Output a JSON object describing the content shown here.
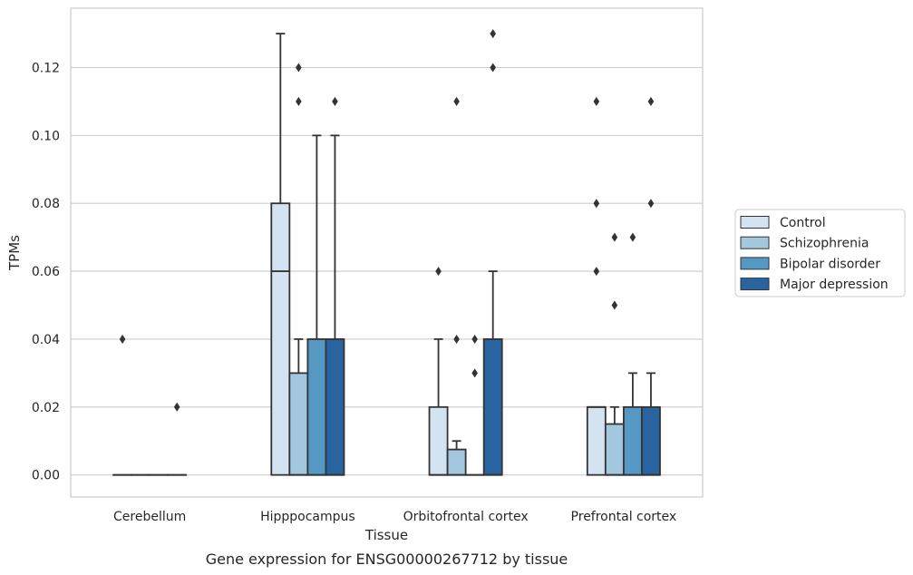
{
  "caption": "Gene expression for ENSG00000267712 by tissue",
  "colors": {
    "grid": "#cccccc",
    "frame": "#cccccc",
    "box_edge": "#333333",
    "text": "#262626"
  },
  "chart_data": {
    "type": "box",
    "title": "",
    "xlabel": "Tissue",
    "ylabel": "TPMs",
    "ylim": [
      -0.0065,
      0.1375
    ],
    "yticks": [
      0.0,
      0.02,
      0.04,
      0.06,
      0.08,
      0.1,
      0.12
    ],
    "ytick_labels": [
      "0.00",
      "0.02",
      "0.04",
      "0.06",
      "0.08",
      "0.10",
      "0.12"
    ],
    "grid": "horizontal",
    "legend_position": "right",
    "categories": [
      "Cerebellum",
      "Hipppocampus",
      "Orbitofrontal cortex",
      "Prefrontal cortex"
    ],
    "series": [
      {
        "name": "Control",
        "color": "#d4e3f2",
        "boxes": [
          {
            "q1": 0.0,
            "median": 0.0,
            "q3": 0.0,
            "whisker_low": 0.0,
            "whisker_high": 0.0,
            "outliers": [
              0.04
            ]
          },
          {
            "q1": 0.0,
            "median": 0.06,
            "q3": 0.08,
            "whisker_low": 0.0,
            "whisker_high": 0.13,
            "outliers": []
          },
          {
            "q1": 0.0,
            "median": 0.0,
            "q3": 0.02,
            "whisker_low": 0.0,
            "whisker_high": 0.04,
            "outliers": [
              0.06
            ]
          },
          {
            "q1": 0.0,
            "median": 0.02,
            "q3": 0.02,
            "whisker_low": 0.0,
            "whisker_high": 0.02,
            "outliers": [
              0.06,
              0.08,
              0.11
            ]
          }
        ]
      },
      {
        "name": "Schizophrenia",
        "color": "#a3c7df",
        "boxes": [
          {
            "q1": 0.0,
            "median": 0.0,
            "q3": 0.0,
            "whisker_low": 0.0,
            "whisker_high": 0.0,
            "outliers": []
          },
          {
            "q1": 0.0,
            "median": 0.0,
            "q3": 0.03,
            "whisker_low": 0.0,
            "whisker_high": 0.04,
            "outliers": [
              0.11,
              0.12
            ]
          },
          {
            "q1": 0.0,
            "median": 0.0,
            "q3": 0.0075,
            "whisker_low": 0.0,
            "whisker_high": 0.01,
            "outliers": [
              0.04,
              0.11
            ]
          },
          {
            "q1": 0.0,
            "median": 0.0,
            "q3": 0.015,
            "whisker_low": 0.0,
            "whisker_high": 0.02,
            "outliers": [
              0.05,
              0.07
            ]
          }
        ]
      },
      {
        "name": "Bipolar disorder",
        "color": "#5698c4",
        "boxes": [
          {
            "q1": 0.0,
            "median": 0.0,
            "q3": 0.0,
            "whisker_low": 0.0,
            "whisker_high": 0.0,
            "outliers": []
          },
          {
            "q1": 0.0,
            "median": 0.0,
            "q3": 0.04,
            "whisker_low": 0.0,
            "whisker_high": 0.1,
            "outliers": []
          },
          {
            "q1": 0.0,
            "median": 0.0,
            "q3": 0.0,
            "whisker_low": 0.0,
            "whisker_high": 0.0,
            "outliers": [
              0.03,
              0.04
            ]
          },
          {
            "q1": 0.0,
            "median": 0.0,
            "q3": 0.02,
            "whisker_low": 0.0,
            "whisker_high": 0.03,
            "outliers": [
              0.07
            ]
          }
        ]
      },
      {
        "name": "Major depression",
        "color": "#2a64a0",
        "boxes": [
          {
            "q1": 0.0,
            "median": 0.0,
            "q3": 0.0,
            "whisker_low": 0.0,
            "whisker_high": 0.0,
            "outliers": [
              0.02
            ]
          },
          {
            "q1": 0.0,
            "median": 0.0,
            "q3": 0.04,
            "whisker_low": 0.0,
            "whisker_high": 0.1,
            "outliers": [
              0.11
            ]
          },
          {
            "q1": 0.0,
            "median": 0.0,
            "q3": 0.04,
            "whisker_low": 0.0,
            "whisker_high": 0.06,
            "outliers": [
              0.12,
              0.13
            ]
          },
          {
            "q1": 0.0,
            "median": 0.0,
            "q3": 0.02,
            "whisker_low": 0.0,
            "whisker_high": 0.03,
            "outliers": [
              0.08,
              0.11
            ]
          }
        ]
      }
    ]
  }
}
